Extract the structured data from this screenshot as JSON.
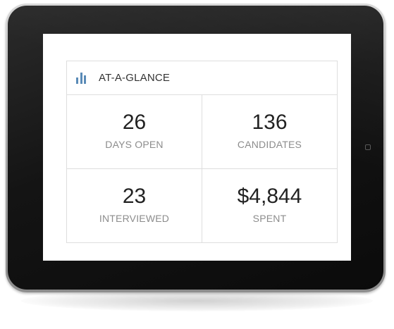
{
  "widget": {
    "title": "AT-A-GLANCE",
    "icon": "bar-chart-icon",
    "accent_color": "#5a8bb7"
  },
  "stats": [
    {
      "value": "26",
      "label": "DAYS OPEN"
    },
    {
      "value": "136",
      "label": "CANDIDATES"
    },
    {
      "value": "23",
      "label": "INTERVIEWED"
    },
    {
      "value": "$4,844",
      "label": "SPENT"
    }
  ]
}
